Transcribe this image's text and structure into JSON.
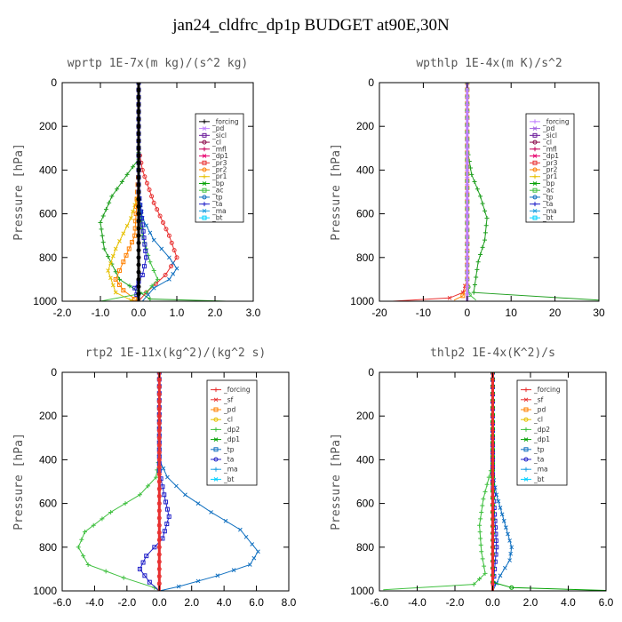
{
  "figure_title": "jan24_cldfrc_dp1p  BUDGET at90E,30N",
  "chart_data": [
    {
      "type": "line",
      "title": "wprtp  1E-7x(m kg)/(s^2 kg)",
      "ylabel": "Pressure [hPa]",
      "xlim": [
        -2.0,
        3.0
      ],
      "ylim": [
        1000,
        0
      ],
      "xticks": [
        "-2.0",
        "-1.0",
        "0.0",
        "1.0",
        "2.0",
        "3.0"
      ],
      "xtick_values": [
        -2,
        -1,
        0,
        1,
        2,
        3
      ],
      "yticks": [
        "0",
        "200",
        "400",
        "600",
        "800",
        "1000"
      ],
      "ytick_values": [
        0,
        200,
        400,
        600,
        800,
        1000
      ],
      "grid": false,
      "legend_position": "top-right",
      "legend": [
        "_forcing",
        "_pd",
        "_sicl",
        "_cl",
        "_mfl",
        "_dp1",
        "_pr3",
        "_pr2",
        "_pr1",
        "_bp",
        "_ac",
        "_tp",
        "_ta",
        "_ma",
        "_bt"
      ],
      "legend_colors": [
        "#000000",
        "#c080ff",
        "#6a1a9a",
        "#8b0a4a",
        "#c8005a",
        "#e8006e",
        "#e83030",
        "#ff8000",
        "#e6c000",
        "#00a000",
        "#40c040",
        "#1070c0",
        "#2020c8",
        "#20a0e0",
        "#00d0ff"
      ],
      "series": [
        {
          "name": "_ac",
          "color": "#1f9f1f",
          "x": [
            0.0,
            0.0,
            0.0,
            -0.3,
            -0.7,
            -1.0,
            -0.9,
            -0.5,
            0.3,
            2.3
          ],
          "y": [
            0,
            200,
            350,
            420,
            520,
            640,
            760,
            900,
            990,
            1000
          ]
        },
        {
          "name": "_pr1",
          "color": "#e6c000",
          "x": [
            0.0,
            0.0,
            0.0,
            -0.2,
            -0.6,
            -0.8,
            -0.6,
            -0.2,
            0.0
          ],
          "y": [
            0,
            200,
            500,
            620,
            760,
            860,
            960,
            995,
            1000
          ]
        },
        {
          "name": "_pr2",
          "color": "#ff8000",
          "x": [
            0.0,
            0.0,
            -0.1,
            -0.4,
            -0.6,
            -0.4,
            -0.1,
            0.0
          ],
          "y": [
            0,
            400,
            700,
            820,
            900,
            950,
            990,
            1000
          ]
        },
        {
          "name": "_pr3",
          "color": "#e83030",
          "x": [
            0.0,
            0.0,
            0.1,
            0.4,
            0.8,
            1.0,
            0.7,
            0.2,
            0.0
          ],
          "y": [
            0,
            300,
            400,
            550,
            700,
            800,
            880,
            960,
            1000
          ]
        },
        {
          "name": "_bp",
          "color": "#40c040",
          "x": [
            0.0,
            0.0,
            0.1,
            0.3,
            0.5,
            0.2,
            -1.0
          ],
          "y": [
            0,
            500,
            700,
            820,
            900,
            960,
            1000
          ]
        },
        {
          "name": "_tp",
          "color": "#1070c0",
          "x": [
            0.0,
            0.0,
            0.1,
            0.4,
            0.8,
            1.0,
            0.8,
            0.4,
            0.1
          ],
          "y": [
            0,
            500,
            620,
            720,
            800,
            850,
            900,
            940,
            1000
          ]
        },
        {
          "name": "_ta",
          "color": "#2020c8",
          "x": [
            0.0,
            0.0,
            0.1,
            0.2,
            0.1,
            -0.1,
            0.0
          ],
          "y": [
            0,
            500,
            650,
            800,
            880,
            940,
            1000
          ]
        },
        {
          "name": "_forcing",
          "color": "#000000",
          "x": [
            0.0,
            0.0,
            0.0,
            0.0,
            0.0,
            0.0
          ],
          "y": [
            0,
            200,
            400,
            600,
            800,
            1000
          ]
        }
      ]
    },
    {
      "type": "line",
      "title": "wpthlp  1E-4x(m K)/s^2",
      "ylabel": "Pressure [hPa]",
      "xlim": [
        -20,
        30
      ],
      "ylim": [
        1000,
        0
      ],
      "xticks": [
        "-20",
        "-10",
        "0",
        "10",
        "20",
        "30"
      ],
      "xtick_values": [
        -20,
        -10,
        0,
        10,
        20,
        30
      ],
      "yticks": [
        "0",
        "200",
        "400",
        "600",
        "800",
        "1000"
      ],
      "ytick_values": [
        0,
        200,
        400,
        600,
        800,
        1000
      ],
      "grid": false,
      "legend_position": "top-right",
      "legend": [
        "_forcing",
        "_pd",
        "_sicl",
        "_cl",
        "_mfl",
        "_dp1",
        "_pr3",
        "_pr2",
        "_pr1",
        "_bp",
        "_ac",
        "_tp",
        "_ta",
        "_ma",
        "_bt"
      ],
      "legend_colors": [
        "#c080ff",
        "#a060e0",
        "#6a1a9a",
        "#8b0a4a",
        "#c8005a",
        "#e8006e",
        "#e83030",
        "#ff8000",
        "#e6c000",
        "#00a000",
        "#40c040",
        "#1070c0",
        "#2020c8",
        "#20a0e0",
        "#00d0ff"
      ],
      "series": [
        {
          "name": "_ac",
          "color": "#1f9f1f",
          "x": [
            0.0,
            0.0,
            1.0,
            3.0,
            4.5,
            4.0,
            2.5,
            1.5,
            30.0
          ],
          "y": [
            0,
            300,
            420,
            520,
            620,
            720,
            820,
            960,
            995
          ]
        },
        {
          "name": "_pr3",
          "color": "#e83030",
          "x": [
            0.0,
            0.0,
            -1.0,
            -4.0,
            -17.0
          ],
          "y": [
            0,
            900,
            960,
            985,
            1000
          ]
        },
        {
          "name": "_pr2",
          "color": "#ff8000",
          "x": [
            0.0,
            0.0,
            -1.0,
            -3.0
          ],
          "y": [
            0,
            930,
            975,
            995
          ]
        },
        {
          "name": "_bp",
          "color": "#40c040",
          "x": [
            0.0,
            0.0,
            0.5,
            2.0
          ],
          "y": [
            0,
            900,
            970,
            995
          ]
        },
        {
          "name": "_forcing",
          "color": "#c080ff",
          "x": [
            0.0,
            0.0,
            0.0,
            0.0,
            0.0,
            0.0
          ],
          "y": [
            0,
            200,
            400,
            600,
            800,
            1000
          ]
        }
      ]
    },
    {
      "type": "line",
      "title": "rtp2  1E-11x(kg^2)/(kg^2 s)",
      "ylabel": "Pressure [hPa]",
      "xlim": [
        -6.0,
        8.0
      ],
      "ylim": [
        1000,
        0
      ],
      "xticks": [
        "-6.0",
        "-4.0",
        "-2.0",
        "0.0",
        "2.0",
        "4.0",
        "6.0",
        "8.0"
      ],
      "xtick_values": [
        -6,
        -4,
        -2,
        0,
        2,
        4,
        6,
        8
      ],
      "yticks": [
        "0",
        "200",
        "400",
        "600",
        "800",
        "1000"
      ],
      "ytick_values": [
        0,
        200,
        400,
        600,
        800,
        1000
      ],
      "grid": false,
      "legend_position": "top-right",
      "legend": [
        "_forcing",
        "_sf",
        "_pd",
        "_cl",
        "_dp2",
        "_dp1",
        "_tp",
        "_ta",
        "_ma",
        "_bt"
      ],
      "legend_colors": [
        "#e83030",
        "#e83030",
        "#ff8000",
        "#e6c000",
        "#40c040",
        "#00a000",
        "#1070c0",
        "#2020c8",
        "#20a0e0",
        "#00d0ff"
      ],
      "series": [
        {
          "name": "_dp1",
          "color": "#40c040",
          "x": [
            0.0,
            0.0,
            -0.2,
            -1.2,
            -3.0,
            -4.6,
            -5.0,
            -4.4,
            -2.2,
            -0.3,
            0.0
          ],
          "y": [
            0,
            380,
            480,
            560,
            640,
            730,
            800,
            880,
            940,
            985,
            1000
          ]
        },
        {
          "name": "_tp",
          "color": "#1070c0",
          "x": [
            0.0,
            0.0,
            0.5,
            1.6,
            3.2,
            5.0,
            6.1,
            5.6,
            3.6,
            1.2,
            0.0
          ],
          "y": [
            0,
            400,
            480,
            560,
            640,
            720,
            820,
            880,
            930,
            980,
            1000
          ]
        },
        {
          "name": "_ta",
          "color": "#2020c8",
          "x": [
            0.0,
            0.0,
            0.3,
            0.6,
            0.2,
            -0.8,
            -1.2,
            -0.6,
            0.0
          ],
          "y": [
            0,
            450,
            560,
            660,
            760,
            840,
            900,
            960,
            1000
          ]
        },
        {
          "name": "_sf",
          "color": "#e83030",
          "x": [
            0.0,
            0.0,
            0.0,
            0.0,
            0.0,
            0.0
          ],
          "y": [
            0,
            200,
            400,
            600,
            800,
            1000
          ]
        }
      ]
    },
    {
      "type": "line",
      "title": "thlp2  1E-4x(K^2)/s",
      "ylabel": "Pressure [hPa]",
      "xlim": [
        -6.0,
        6.0
      ],
      "ylim": [
        1000,
        0
      ],
      "xticks": [
        "-6.0",
        "-4.0",
        "-2.0",
        "0.0",
        "2.0",
        "4.0",
        "6.0"
      ],
      "xtick_values": [
        -6,
        -4,
        -2,
        0,
        2,
        4,
        6
      ],
      "yticks": [
        "0",
        "200",
        "400",
        "600",
        "800",
        "1000"
      ],
      "ytick_values": [
        0,
        200,
        400,
        600,
        800,
        1000
      ],
      "grid": false,
      "legend_position": "top-right",
      "legend": [
        "_forcing",
        "_sf",
        "_pd",
        "_cl",
        "_dp2",
        "_dp1",
        "_tp",
        "_ta",
        "_ma",
        "_bt"
      ],
      "legend_colors": [
        "#e83030",
        "#e83030",
        "#ff8000",
        "#e6c000",
        "#40c040",
        "#00a000",
        "#1070c0",
        "#2020c8",
        "#20a0e0",
        "#00d0ff"
      ],
      "series": [
        {
          "name": "_dp1",
          "color": "#40c040",
          "x": [
            0.0,
            0.0,
            -0.2,
            -0.5,
            -0.7,
            -0.6,
            -0.4,
            -1.0,
            -5.8
          ],
          "y": [
            0,
            420,
            480,
            580,
            700,
            820,
            920,
            970,
            995
          ]
        },
        {
          "name": "_tp",
          "color": "#1070c0",
          "x": [
            0.0,
            0.0,
            0.2,
            0.6,
            1.0,
            0.9,
            0.4,
            0.0
          ],
          "y": [
            0,
            460,
            560,
            680,
            800,
            860,
            930,
            1000
          ]
        },
        {
          "name": "_ta",
          "color": "#2020c8",
          "x": [
            0.0,
            0.0,
            0.1,
            0.2,
            0.1,
            0.0
          ],
          "y": [
            0,
            500,
            650,
            800,
            900,
            1000
          ]
        },
        {
          "name": "_dp2",
          "color": "#00a000",
          "x": [
            0.0,
            0.0,
            1.0,
            6.0
          ],
          "y": [
            0,
            960,
            985,
            998
          ]
        },
        {
          "name": "_sf",
          "color": "#e83030",
          "x": [
            0.0,
            0.0,
            0.0,
            0.0,
            0.0,
            0.0
          ],
          "y": [
            0,
            200,
            400,
            600,
            800,
            1000
          ]
        }
      ]
    }
  ]
}
